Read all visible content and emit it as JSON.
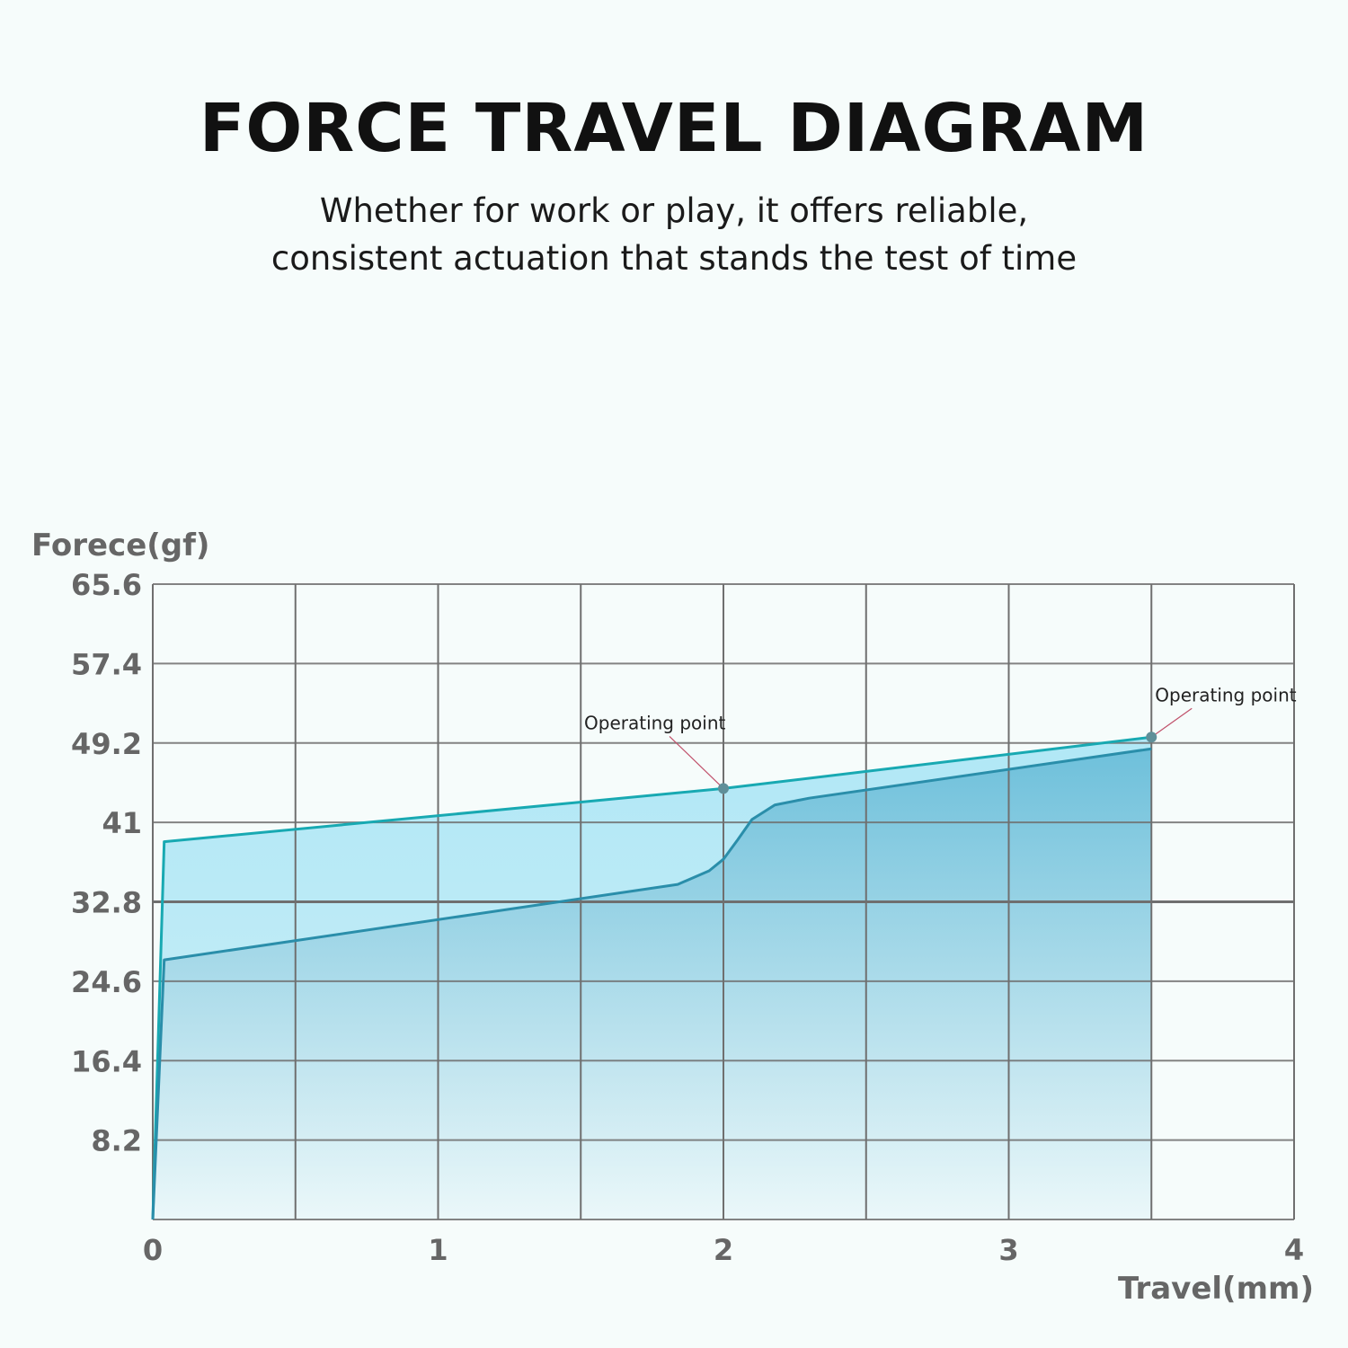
{
  "header": {
    "title": "FORCE TRAVEL DIAGRAM",
    "subtitle_lines": [
      "Whether for work or play, it offers reliable,",
      "consistent actuation that stands the test of time"
    ]
  },
  "chart_data": {
    "type": "area",
    "xlabel": "Travel(mm)",
    "ylabel": "Forece(gf)",
    "xlim": [
      0,
      4
    ],
    "ylim": [
      0,
      65.6
    ],
    "xticks": [
      0,
      1,
      2,
      3,
      4
    ],
    "yticks": [
      8.2,
      16.4,
      24.6,
      32.8,
      41,
      49.2,
      57.4,
      65.6
    ],
    "grid": true,
    "series": [
      {
        "x": [
          0,
          0.04,
          2.0,
          3.5
        ],
        "y": [
          0,
          39,
          44.5,
          49.8
        ],
        "color": "#18a9b2"
      },
      {
        "x": [
          0,
          0.04,
          1.84,
          1.95,
          2.0,
          2.05,
          2.1,
          2.18,
          2.3,
          3.5
        ],
        "y": [
          0,
          26.8,
          34.6,
          36,
          37.2,
          39.2,
          41.3,
          42.8,
          43.5,
          48.6
        ],
        "color": "#2a8eaa"
      }
    ],
    "annotations": [
      {
        "text": "Operating point",
        "x": 2.0,
        "y": 44.5
      },
      {
        "text": "Operating point",
        "x": 3.5,
        "y": 49.8
      }
    ]
  }
}
